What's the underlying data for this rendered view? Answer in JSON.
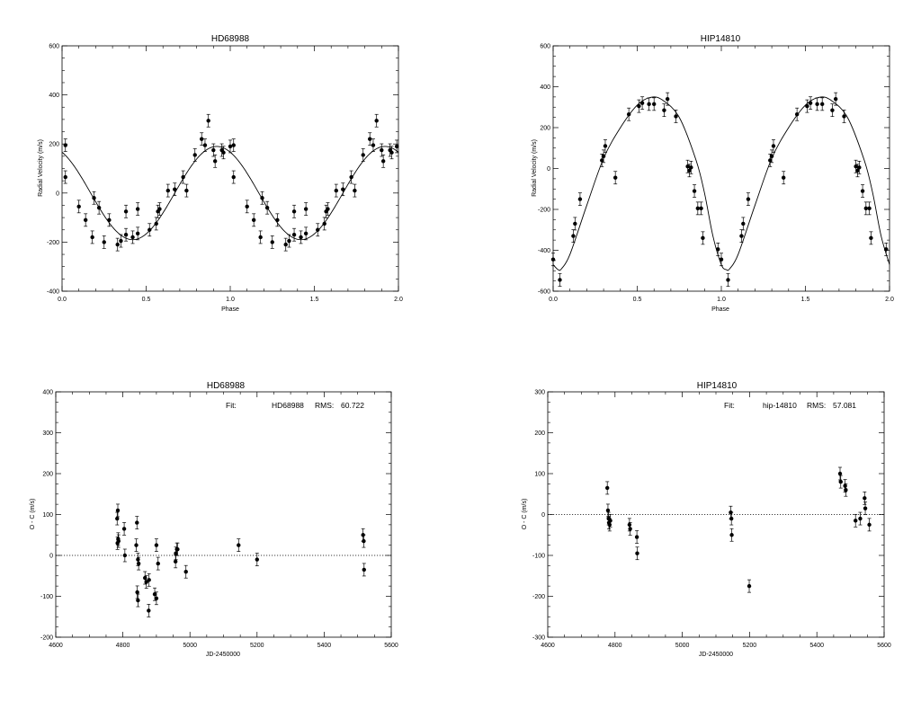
{
  "chart_data": [
    {
      "type": "scatter",
      "title": "HD68988",
      "xlabel": "Phase",
      "ylabel": "Radial Velocity (m/s)",
      "xlim": [
        0,
        2
      ],
      "ylim": [
        -400,
        600
      ],
      "xticks": [
        "0.0",
        "0.5",
        "1.0",
        "1.5",
        "2.0"
      ],
      "yticks": [
        "-400",
        "-200",
        "0",
        "200",
        "400",
        "600"
      ],
      "fit_curve": {
        "form": "sinusoid",
        "mean": 0,
        "amplitude": 190,
        "peak_phase": 0.92,
        "period_phase": 1
      },
      "points": [
        [
          0.02,
          195
        ],
        [
          0.02,
          65
        ],
        [
          0.1,
          -55
        ],
        [
          0.14,
          -110
        ],
        [
          0.18,
          -180
        ],
        [
          0.19,
          -20
        ],
        [
          0.22,
          -60
        ],
        [
          0.25,
          -200
        ],
        [
          0.28,
          -110
        ],
        [
          0.33,
          -210
        ],
        [
          0.35,
          -195
        ],
        [
          0.38,
          -170
        ],
        [
          0.38,
          -75
        ],
        [
          0.42,
          -180
        ],
        [
          0.45,
          -165
        ],
        [
          0.45,
          -65
        ],
        [
          0.52,
          -150
        ],
        [
          0.56,
          -125
        ],
        [
          0.57,
          -75
        ],
        [
          0.58,
          -65
        ],
        [
          0.63,
          10
        ],
        [
          0.67,
          15
        ],
        [
          0.72,
          65
        ],
        [
          0.74,
          10
        ],
        [
          0.79,
          155
        ],
        [
          0.83,
          220
        ],
        [
          0.85,
          195
        ],
        [
          0.87,
          295
        ],
        [
          0.9,
          175
        ],
        [
          0.91,
          130
        ],
        [
          0.95,
          175
        ],
        [
          0.96,
          165
        ],
        [
          1.0,
          190
        ],
        [
          1.02,
          195
        ],
        [
          1.02,
          65
        ],
        [
          1.1,
          -55
        ],
        [
          1.14,
          -110
        ],
        [
          1.18,
          -180
        ],
        [
          1.19,
          -20
        ],
        [
          1.22,
          -60
        ],
        [
          1.25,
          -200
        ],
        [
          1.28,
          -110
        ],
        [
          1.33,
          -210
        ],
        [
          1.35,
          -195
        ],
        [
          1.38,
          -170
        ],
        [
          1.38,
          -75
        ],
        [
          1.42,
          -180
        ],
        [
          1.45,
          -165
        ],
        [
          1.45,
          -65
        ],
        [
          1.52,
          -150
        ],
        [
          1.56,
          -125
        ],
        [
          1.57,
          -75
        ],
        [
          1.58,
          -65
        ],
        [
          1.63,
          10
        ],
        [
          1.67,
          15
        ],
        [
          1.72,
          65
        ],
        [
          1.74,
          10
        ],
        [
          1.79,
          155
        ],
        [
          1.83,
          220
        ],
        [
          1.85,
          195
        ],
        [
          1.87,
          295
        ],
        [
          1.9,
          175
        ],
        [
          1.91,
          130
        ],
        [
          1.95,
          175
        ],
        [
          1.96,
          165
        ],
        [
          1.99,
          190
        ]
      ]
    },
    {
      "type": "scatter",
      "title": "HIP14810",
      "xlabel": "Phase",
      "ylabel": "Radial Velocity (m/s)",
      "xlim": [
        0,
        2
      ],
      "ylim": [
        -600,
        600
      ],
      "xticks": [
        "0.0",
        "0.5",
        "1.0",
        "1.5",
        "2.0"
      ],
      "yticks": [
        "-600",
        "-400",
        "-200",
        "0",
        "200",
        "400",
        "600"
      ],
      "fit_curve": {
        "form": "eccentric",
        "period_phase": 1,
        "points": [
          [
            0,
            -470
          ],
          [
            0.03,
            -495
          ],
          [
            0.05,
            -490
          ],
          [
            0.1,
            -420
          ],
          [
            0.2,
            -180
          ],
          [
            0.3,
            50
          ],
          [
            0.4,
            200
          ],
          [
            0.5,
            310
          ],
          [
            0.58,
            348
          ],
          [
            0.65,
            335
          ],
          [
            0.75,
            250
          ],
          [
            0.85,
            40
          ],
          [
            0.9,
            -120
          ],
          [
            0.95,
            -330
          ],
          [
            1.0,
            -470
          ],
          [
            1.03,
            -495
          ],
          [
            1.05,
            -490
          ],
          [
            1.1,
            -420
          ],
          [
            1.2,
            -180
          ],
          [
            1.3,
            50
          ],
          [
            1.4,
            200
          ],
          [
            1.5,
            310
          ],
          [
            1.58,
            348
          ],
          [
            1.65,
            335
          ],
          [
            1.75,
            250
          ],
          [
            1.85,
            40
          ],
          [
            1.9,
            -120
          ],
          [
            1.95,
            -330
          ],
          [
            2.0,
            -470
          ]
        ]
      },
      "points": [
        [
          0.0,
          -445
        ],
        [
          0.04,
          -545
        ],
        [
          0.12,
          -330
        ],
        [
          0.13,
          -270
        ],
        [
          0.16,
          -150
        ],
        [
          0.29,
          40
        ],
        [
          0.3,
          60
        ],
        [
          0.31,
          110
        ],
        [
          0.37,
          -45
        ],
        [
          0.45,
          265
        ],
        [
          0.51,
          305
        ],
        [
          0.53,
          320
        ],
        [
          0.57,
          315
        ],
        [
          0.6,
          315
        ],
        [
          0.66,
          285
        ],
        [
          0.68,
          340
        ],
        [
          0.73,
          255
        ],
        [
          0.8,
          10
        ],
        [
          0.81,
          -10
        ],
        [
          0.82,
          5
        ],
        [
          0.84,
          -110
        ],
        [
          0.86,
          -195
        ],
        [
          0.88,
          -195
        ],
        [
          0.89,
          -340
        ],
        [
          0.98,
          -395
        ],
        [
          1.0,
          -445
        ],
        [
          1.04,
          -545
        ],
        [
          1.12,
          -330
        ],
        [
          1.13,
          -270
        ],
        [
          1.16,
          -150
        ],
        [
          1.29,
          40
        ],
        [
          1.3,
          60
        ],
        [
          1.31,
          110
        ],
        [
          1.37,
          -45
        ],
        [
          1.45,
          265
        ],
        [
          1.51,
          305
        ],
        [
          1.53,
          320
        ],
        [
          1.57,
          315
        ],
        [
          1.6,
          315
        ],
        [
          1.66,
          285
        ],
        [
          1.68,
          340
        ],
        [
          1.73,
          255
        ],
        [
          1.8,
          10
        ],
        [
          1.81,
          -10
        ],
        [
          1.82,
          5
        ],
        [
          1.84,
          -110
        ],
        [
          1.86,
          -195
        ],
        [
          1.88,
          -195
        ],
        [
          1.89,
          -340
        ],
        [
          1.98,
          -395
        ]
      ]
    },
    {
      "type": "scatter",
      "title": "HD68988",
      "xlabel": "JD-2450000",
      "ylabel": "O - C (m/s)",
      "xlim": [
        4600,
        5600
      ],
      "ylim": [
        -200,
        400
      ],
      "xticks": [
        "4600",
        "4800",
        "5000",
        "5200",
        "5400",
        "5600"
      ],
      "yticks": [
        "-200",
        "-100",
        "0",
        "100",
        "200",
        "300",
        "400"
      ],
      "zero_line": true,
      "annotation": {
        "fit_label": "Fit:",
        "name": "HD68988",
        "rms_label": "RMS:",
        "rms_value": "60.722"
      },
      "points": [
        [
          4783,
          90
        ],
        [
          4785,
          110
        ],
        [
          4784,
          30
        ],
        [
          4786,
          40
        ],
        [
          4787,
          35
        ],
        [
          4804,
          65
        ],
        [
          4806,
          0
        ],
        [
          4842,
          80
        ],
        [
          4840,
          25
        ],
        [
          4845,
          -10
        ],
        [
          4847,
          -20
        ],
        [
          4843,
          -90
        ],
        [
          4845,
          -110
        ],
        [
          4866,
          -55
        ],
        [
          4870,
          -65
        ],
        [
          4878,
          -60
        ],
        [
          4877,
          -135
        ],
        [
          4895,
          -95
        ],
        [
          4900,
          -105
        ],
        [
          4900,
          25
        ],
        [
          4905,
          -20
        ],
        [
          4957,
          -15
        ],
        [
          4958,
          5
        ],
        [
          4961,
          15
        ],
        [
          4963,
          15
        ],
        [
          4988,
          -40
        ],
        [
          5145,
          25
        ],
        [
          5200,
          -10
        ],
        [
          5516,
          50
        ],
        [
          5518,
          35
        ],
        [
          5519,
          -35
        ]
      ]
    },
    {
      "type": "scatter",
      "title": "HIP14810",
      "xlabel": "JD-2450000",
      "ylabel": "O - C (m/s)",
      "xlim": [
        4600,
        5600
      ],
      "ylim": [
        -300,
        300
      ],
      "xticks": [
        "4600",
        "4800",
        "5000",
        "5200",
        "5400",
        "5600"
      ],
      "yticks": [
        "-300",
        "-200",
        "-100",
        "0",
        "100",
        "200",
        "300"
      ],
      "zero_line": true,
      "annotation": {
        "fit_label": "Fit:",
        "name": "hip-14810",
        "rms_label": "RMS:",
        "rms_value": "57.081"
      },
      "points": [
        [
          4777,
          65
        ],
        [
          4779,
          10
        ],
        [
          4781,
          -10
        ],
        [
          4782,
          -20
        ],
        [
          4784,
          -25
        ],
        [
          4786,
          -15
        ],
        [
          4843,
          -25
        ],
        [
          4845,
          -35
        ],
        [
          4865,
          -55
        ],
        [
          4866,
          -95
        ],
        [
          5144,
          5
        ],
        [
          5146,
          -10
        ],
        [
          5147,
          -50
        ],
        [
          5199,
          -175
        ],
        [
          5469,
          100
        ],
        [
          5471,
          80
        ],
        [
          5484,
          70
        ],
        [
          5486,
          60
        ],
        [
          5515,
          -15
        ],
        [
          5529,
          -10
        ],
        [
          5542,
          40
        ],
        [
          5544,
          15
        ],
        [
          5556,
          -25
        ]
      ]
    }
  ]
}
